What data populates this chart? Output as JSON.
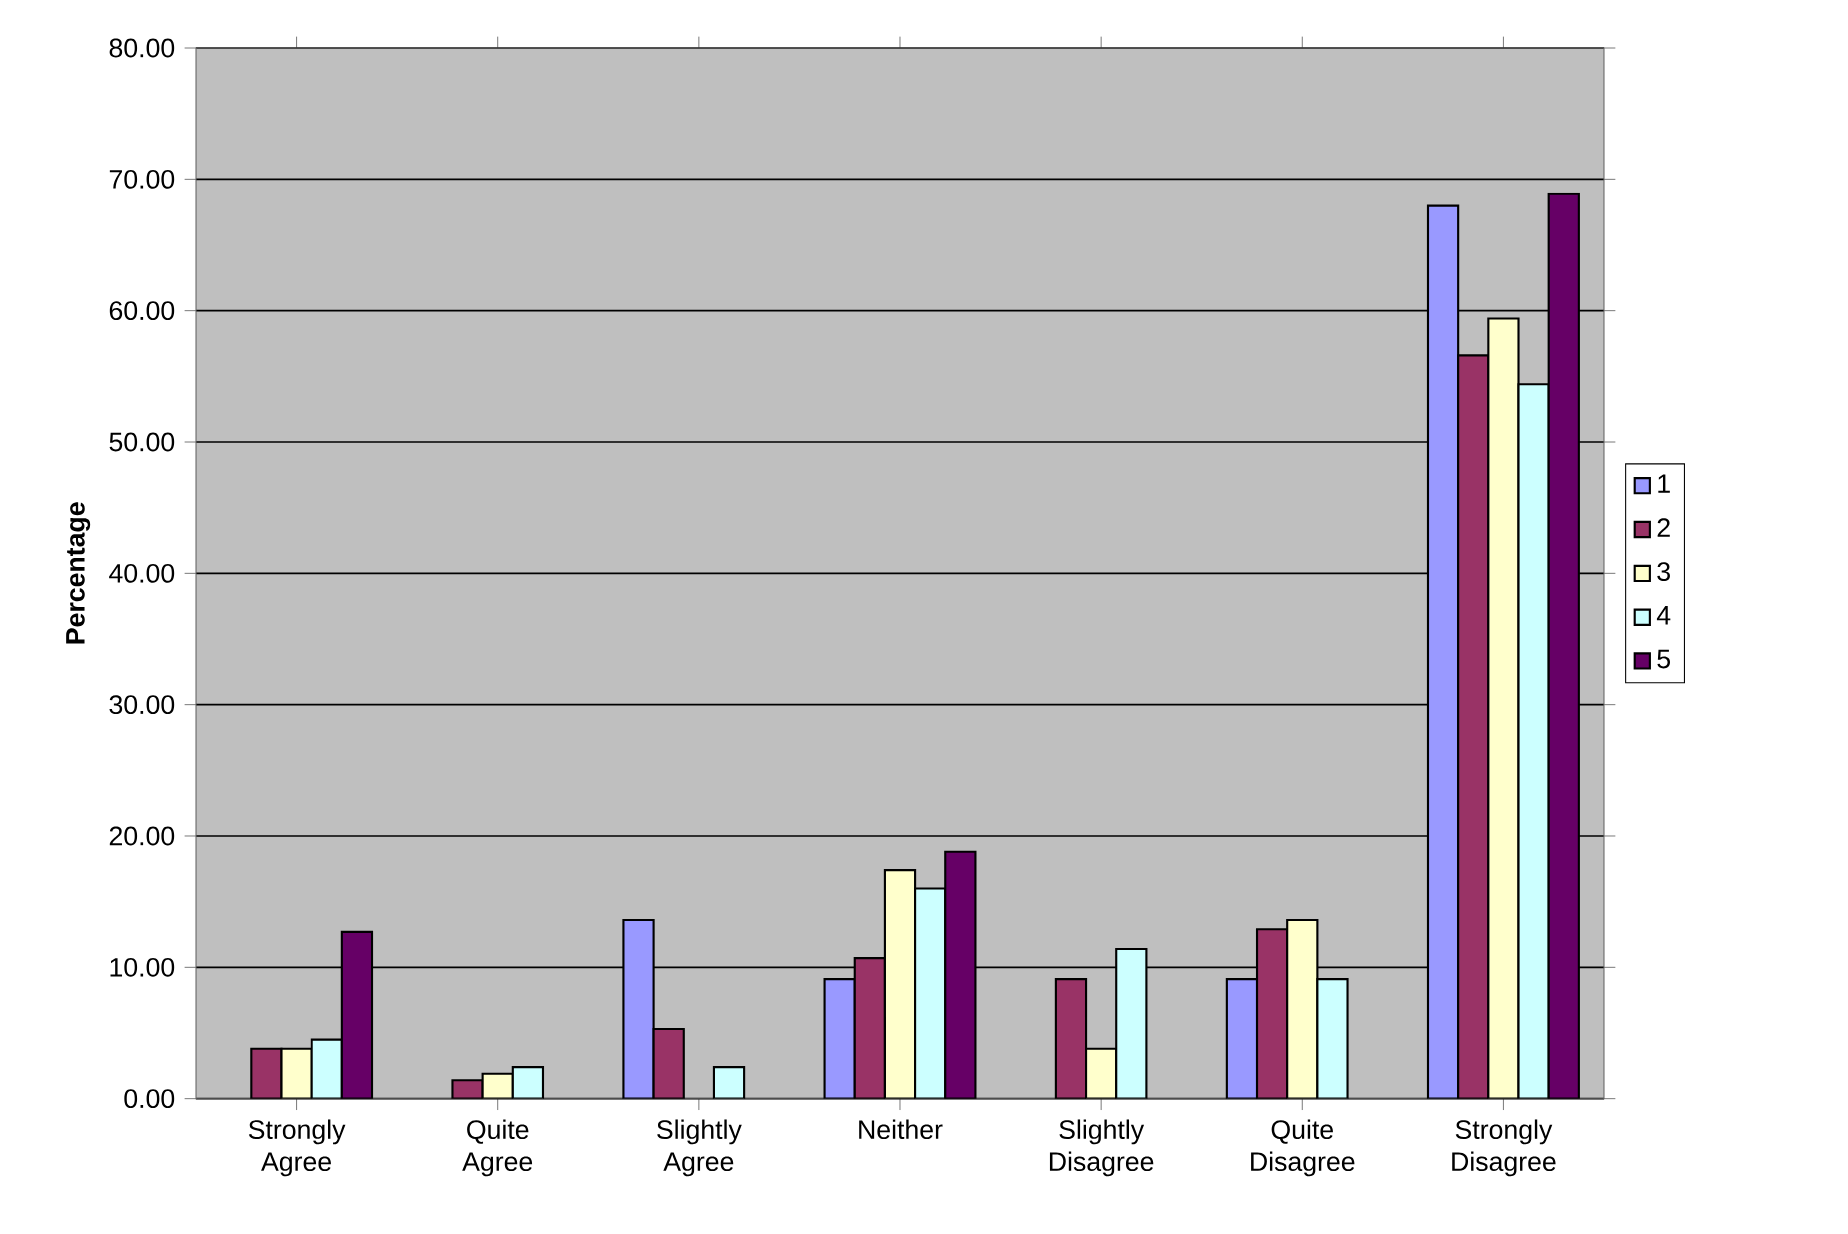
{
  "chart_data": {
    "type": "bar",
    "ylabel": "Percentage",
    "categories": [
      "Strongly Agree",
      "Quite Agree",
      "Slightly Agree",
      "Neither",
      "Slightly Disagree",
      "Quite Disagree",
      "Strongly Disagree"
    ],
    "series": [
      {
        "name": "1",
        "color": "#9999ff",
        "values": [
          null,
          null,
          13.6,
          9.1,
          null,
          9.1,
          68.0
        ]
      },
      {
        "name": "2",
        "color": "#993366",
        "values": [
          3.8,
          1.4,
          5.3,
          10.7,
          9.1,
          12.9,
          56.6
        ]
      },
      {
        "name": "3",
        "color": "#ffffcc",
        "values": [
          3.8,
          1.9,
          null,
          17.4,
          3.8,
          13.6,
          59.4
        ]
      },
      {
        "name": "4",
        "color": "#ccffff",
        "values": [
          4.5,
          2.4,
          2.4,
          16.0,
          11.4,
          9.1,
          54.4
        ]
      },
      {
        "name": "5",
        "color": "#660066",
        "values": [
          12.7,
          null,
          null,
          18.8,
          null,
          null,
          68.9
        ]
      }
    ],
    "ylim": [
      0,
      80
    ],
    "yticks": [
      {
        "value": 0,
        "label": "0.00"
      },
      {
        "value": 10,
        "label": "10.00"
      },
      {
        "value": 20,
        "label": "20.00"
      },
      {
        "value": 30,
        "label": "30.00"
      },
      {
        "value": 40,
        "label": "40.00"
      },
      {
        "value": 50,
        "label": "50.00"
      },
      {
        "value": 60,
        "label": "60.00"
      },
      {
        "value": 70,
        "label": "70.00"
      },
      {
        "value": 80,
        "label": "80.00"
      }
    ],
    "grid": "y",
    "legend": "right"
  }
}
